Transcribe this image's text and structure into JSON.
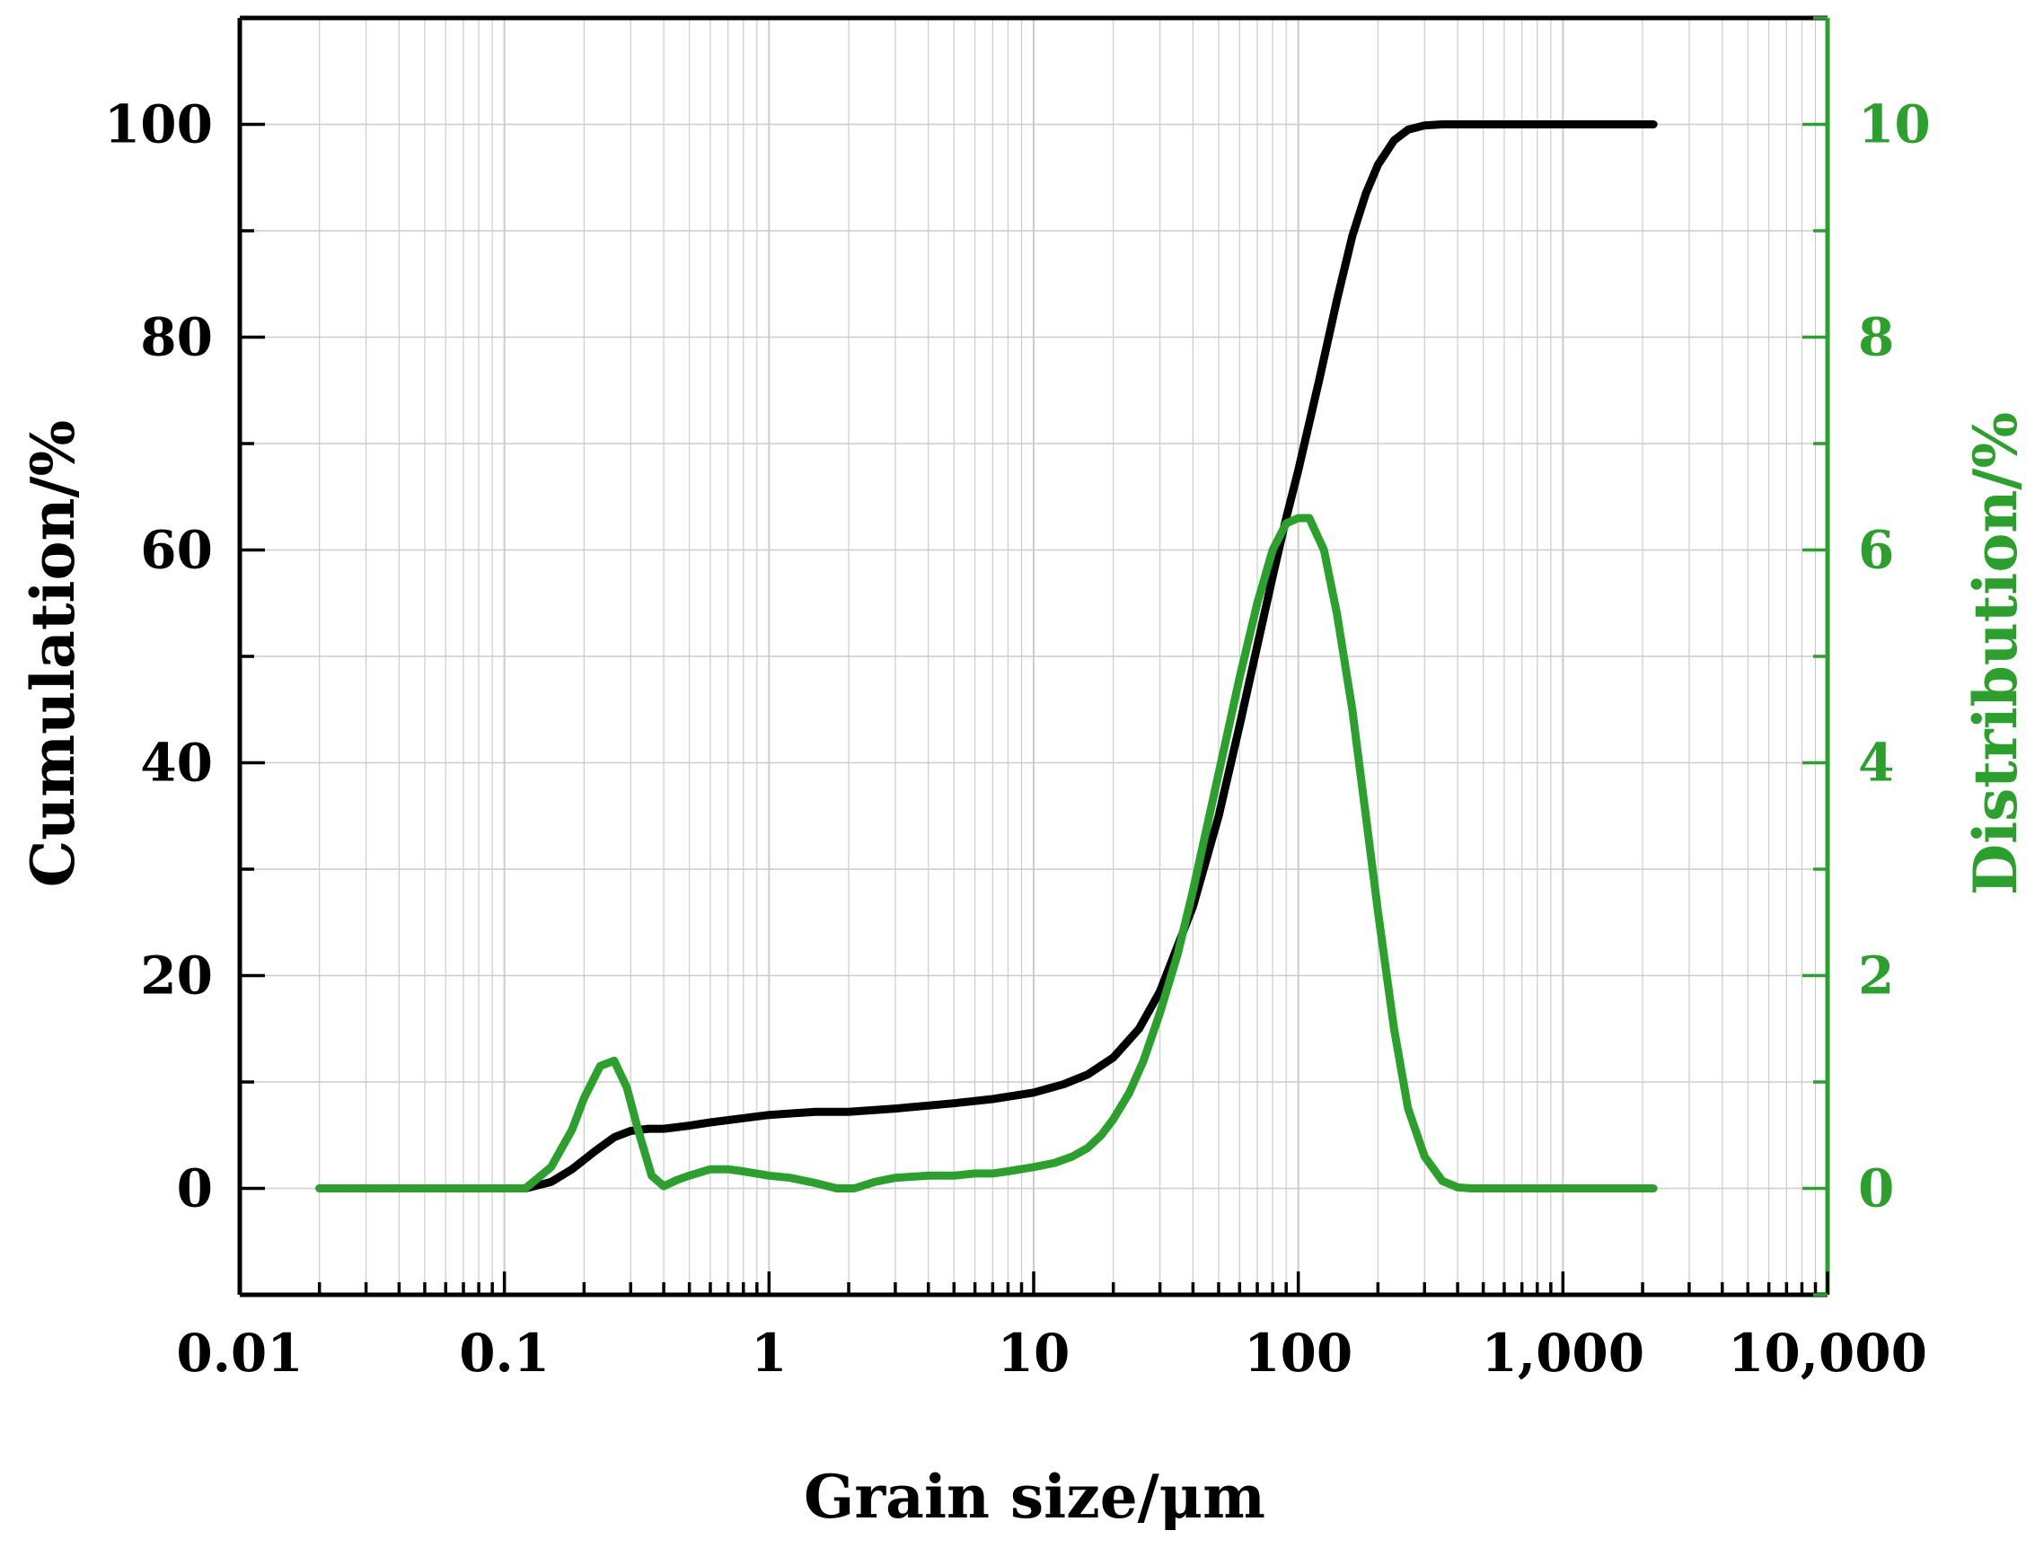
{
  "chart_data": {
    "type": "line",
    "title": "",
    "xlabel": "Grain size/μm",
    "ylabel": "Cumulation/%",
    "y2label": "Distribution/%",
    "x_scale": "log",
    "xlim": [
      0.01,
      10000
    ],
    "ylim": [
      -10,
      110
    ],
    "y2lim": [
      -1,
      11
    ],
    "x_ticks": [
      0.01,
      0.1,
      1,
      10,
      100,
      1000,
      10000
    ],
    "x_tick_labels": [
      "0.01",
      "0.1",
      "1",
      "10",
      "100",
      "1,000",
      "10,000"
    ],
    "y_ticks": [
      0,
      20,
      40,
      60,
      80,
      100
    ],
    "y_tick_labels": [
      "0",
      "20",
      "40",
      "60",
      "80",
      "100"
    ],
    "y2_ticks": [
      0,
      2,
      4,
      6,
      8,
      10
    ],
    "y2_tick_labels": [
      "0",
      "2",
      "4",
      "6",
      "8",
      "10"
    ],
    "grid": true,
    "legend": "none",
    "colors": {
      "cumulation": "#000000",
      "distribution": "#2ca02c",
      "grid": "#cccccc",
      "frame": "#000000"
    },
    "series": [
      {
        "axis": "left",
        "x": [
          0.02,
          0.1,
          0.12,
          0.15,
          0.18,
          0.22,
          0.26,
          0.3,
          0.35,
          0.4,
          0.5,
          0.6,
          0.8,
          1,
          1.5,
          2,
          3,
          5,
          7,
          10,
          13,
          16,
          20,
          25,
          30,
          40,
          50,
          60,
          70,
          80,
          90,
          100,
          120,
          140,
          160,
          180,
          200,
          230,
          260,
          300,
          350,
          400,
          500,
          1000,
          2200
        ],
        "values": [
          0,
          0,
          0,
          0.6,
          1.8,
          3.5,
          4.8,
          5.4,
          5.6,
          5.6,
          5.9,
          6.2,
          6.6,
          6.9,
          7.2,
          7.2,
          7.5,
          8.0,
          8.4,
          9.0,
          9.8,
          10.7,
          12.3,
          15.0,
          18.5,
          26.5,
          35.0,
          43.5,
          51.0,
          57.5,
          63.0,
          67.5,
          76.0,
          83.5,
          89.5,
          93.5,
          96.2,
          98.5,
          99.5,
          99.9,
          100,
          100,
          100,
          100,
          100
        ]
      },
      {
        "axis": "right",
        "x": [
          0.02,
          0.1,
          0.12,
          0.15,
          0.18,
          0.2,
          0.23,
          0.26,
          0.29,
          0.32,
          0.36,
          0.4,
          0.45,
          0.5,
          0.6,
          0.7,
          0.8,
          1,
          1.2,
          1.5,
          1.8,
          2.1,
          2.5,
          3,
          4,
          5,
          6,
          7,
          8,
          10,
          12,
          14,
          16,
          18,
          20,
          23,
          26,
          30,
          35,
          40,
          50,
          60,
          70,
          80,
          90,
          100,
          110,
          125,
          140,
          160,
          180,
          200,
          230,
          260,
          300,
          350,
          400,
          450,
          500,
          1000,
          2200
        ],
        "values": [
          0,
          0,
          0,
          0.2,
          0.55,
          0.85,
          1.15,
          1.2,
          0.95,
          0.55,
          0.12,
          0.02,
          0.08,
          0.12,
          0.18,
          0.18,
          0.16,
          0.12,
          0.1,
          0.05,
          0.0,
          0.0,
          0.06,
          0.1,
          0.12,
          0.12,
          0.14,
          0.14,
          0.16,
          0.2,
          0.24,
          0.3,
          0.38,
          0.5,
          0.65,
          0.9,
          1.2,
          1.65,
          2.2,
          2.8,
          3.9,
          4.8,
          5.5,
          6.0,
          6.25,
          6.3,
          6.3,
          6.0,
          5.4,
          4.5,
          3.5,
          2.6,
          1.5,
          0.75,
          0.3,
          0.07,
          0.01,
          0,
          0,
          0,
          0
        ]
      }
    ]
  }
}
